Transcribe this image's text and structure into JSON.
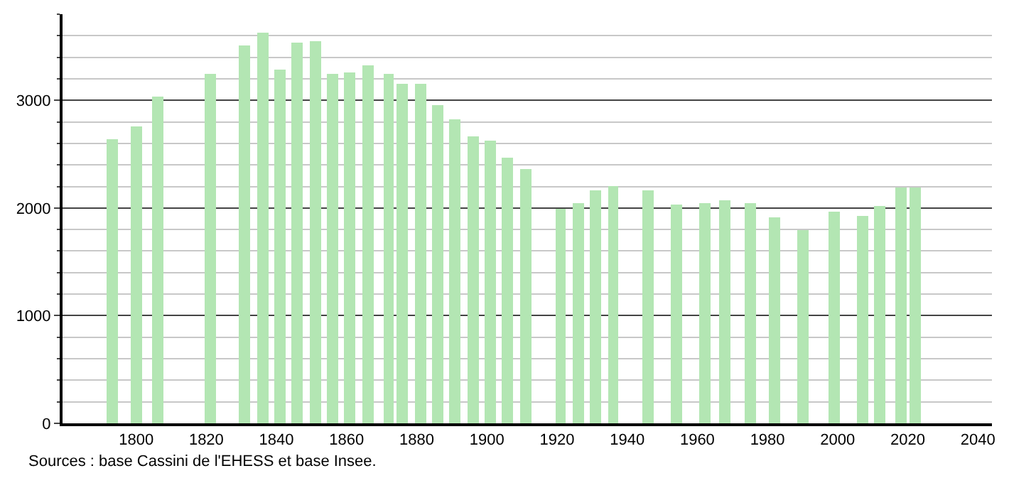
{
  "chart_data": {
    "type": "bar",
    "x": [
      1793,
      1800,
      1806,
      1821,
      1831,
      1836,
      1841,
      1846,
      1851,
      1856,
      1861,
      1866,
      1872,
      1876,
      1881,
      1886,
      1891,
      1896,
      1901,
      1906,
      1911,
      1921,
      1926,
      1931,
      1936,
      1946,
      1954,
      1962,
      1968,
      1975,
      1982,
      1990,
      1999,
      2007,
      2012,
      2018,
      2022
    ],
    "values": [
      2640,
      2760,
      3030,
      3250,
      3510,
      3630,
      3280,
      3540,
      3550,
      3250,
      3260,
      3330,
      3240,
      3160,
      3150,
      2960,
      2830,
      2670,
      2620,
      2470,
      2360,
      1990,
      2040,
      2160,
      2210,
      2170,
      2030,
      2040,
      2070,
      2040,
      1910,
      1800,
      1970,
      1930,
      2020,
      2190,
      2190
    ],
    "color": "#b3e6b3",
    "xlim": [
      1779,
      2044
    ],
    "xticks": [
      1800,
      1820,
      1840,
      1860,
      1880,
      1900,
      1920,
      1940,
      1960,
      1980,
      2000,
      2020,
      2040
    ],
    "ylim": [
      0,
      3800
    ],
    "yticks": [
      0,
      1000,
      2000,
      3000
    ],
    "grid": "y",
    "annotations": [
      "Sources : base Cassini de l'EHESS et base Insee."
    ]
  }
}
